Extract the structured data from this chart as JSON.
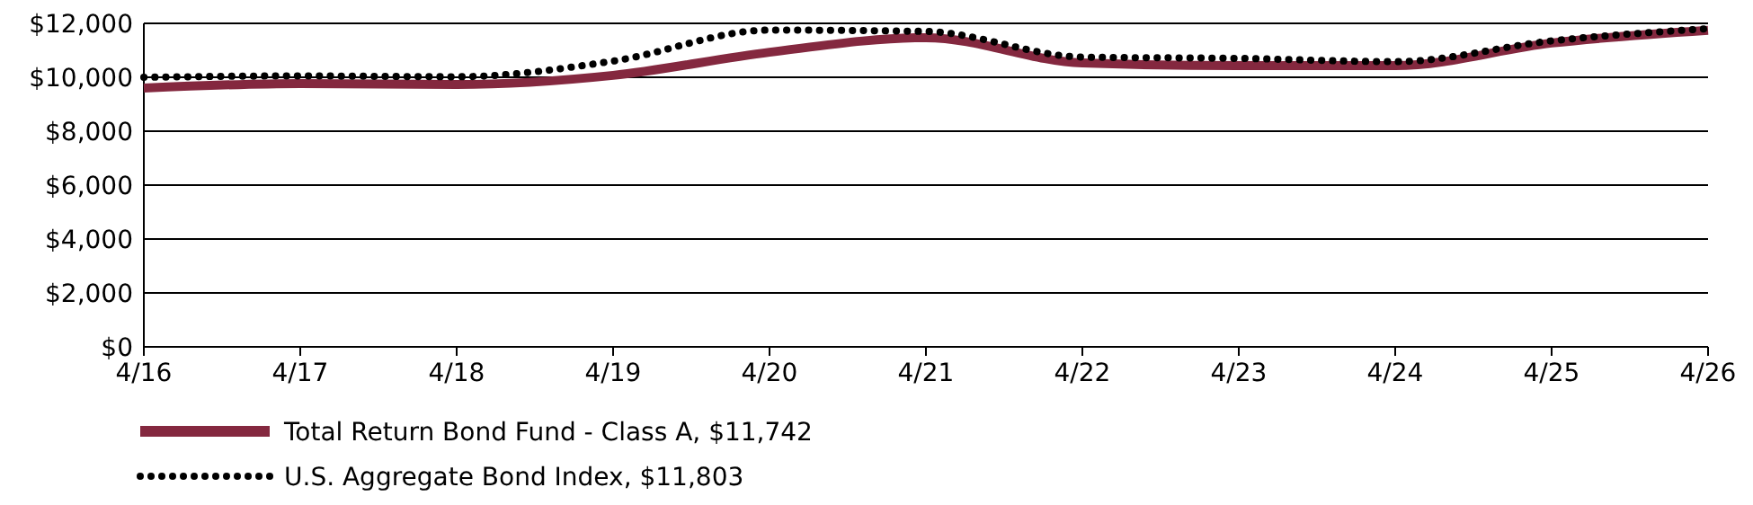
{
  "chart_data": {
    "type": "line",
    "categories": [
      "4/16",
      "4/17",
      "4/18",
      "4/19",
      "4/20",
      "4/21",
      "4/22",
      "4/23",
      "4/24",
      "4/25",
      "4/26"
    ],
    "series": [
      {
        "name": "Total Return Bond Fund - Class A, $11,742",
        "color": "#84283f",
        "line_style": "solid",
        "values": [
          9600,
          9770,
          9730,
          10070,
          10930,
          11470,
          10530,
          10430,
          10430,
          11270,
          11742
        ]
      },
      {
        "name": "U.S. Aggregate Bond Index, $11,803",
        "color": "#000000",
        "line_style": "dotted",
        "values": [
          10000,
          10050,
          10020,
          10600,
          11750,
          11700,
          10750,
          10700,
          10580,
          11350,
          11803
        ]
      }
    ],
    "ylim": [
      0,
      12000
    ],
    "yticks": [
      {
        "value": 0,
        "label": "$0"
      },
      {
        "value": 2000,
        "label": "$2,000"
      },
      {
        "value": 4000,
        "label": "$4,000"
      },
      {
        "value": 6000,
        "label": "$6,000"
      },
      {
        "value": 8000,
        "label": "$8,000"
      },
      {
        "value": 10000,
        "label": "$10,000"
      },
      {
        "value": 12000,
        "label": "$12,000"
      }
    ],
    "grid": "y",
    "legend": "bottom"
  }
}
